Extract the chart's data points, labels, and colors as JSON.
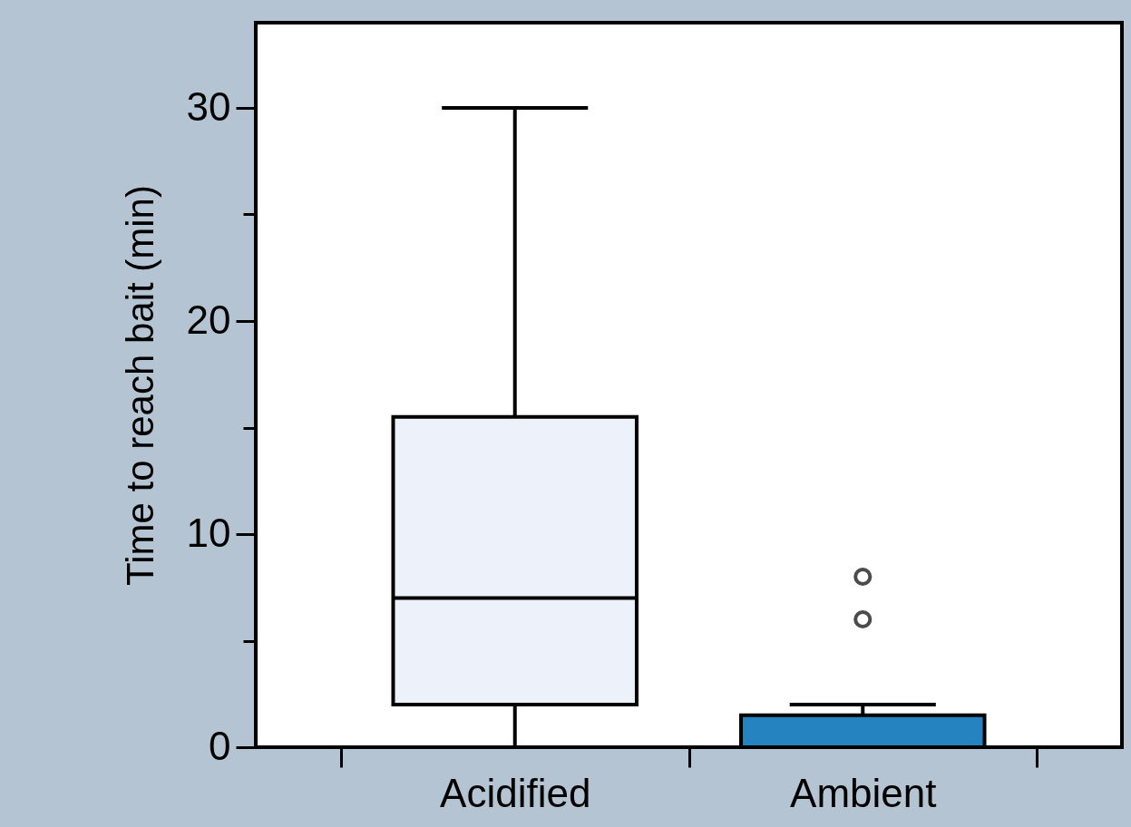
{
  "chart_data": {
    "type": "box",
    "ylabel": "Time to reach bait (min)",
    "categories": [
      "Acidified",
      "Ambient"
    ],
    "boxes": [
      {
        "low": 0,
        "q1": 2,
        "median": 7,
        "q3": 15.5,
        "high": 30
      },
      {
        "low": 0,
        "q1": 0,
        "median": 0,
        "q3": 1.5,
        "high": 2,
        "outliers": [
          6,
          8
        ]
      }
    ],
    "colors": [
      "#edf1fa",
      "#2583c0"
    ],
    "ylim": [
      0,
      34
    ],
    "yticks": [
      0,
      {
        "value": 5,
        "label": null
      },
      10,
      {
        "value": 15,
        "label": null
      },
      20,
      {
        "value": 25,
        "label": null
      },
      30
    ]
  }
}
